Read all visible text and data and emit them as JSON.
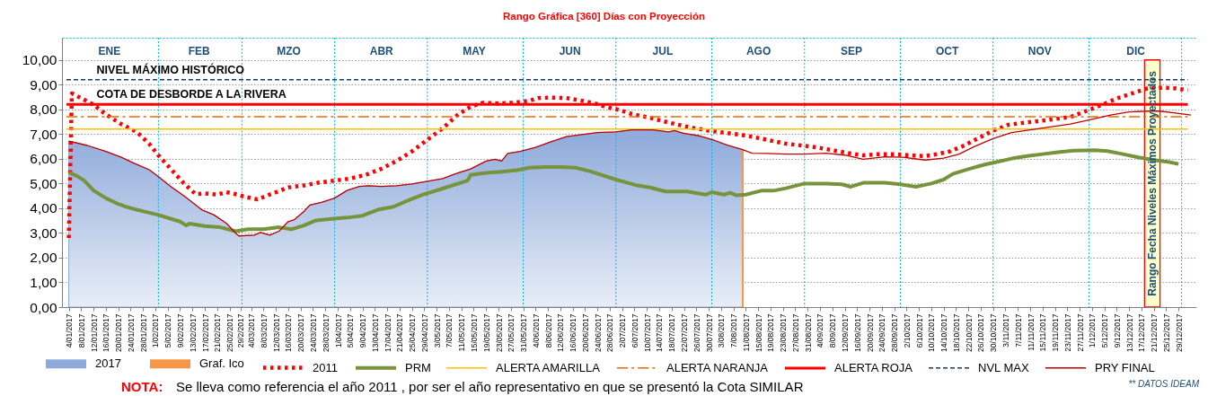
{
  "chart_data": {
    "type": "line",
    "title": "Rango Gráfica [360]  Días con Proyección",
    "xlim": [
      "2017-01-03T06:00",
      "2018-01-02T07:00"
    ],
    "xticks": [
      {
        "value": "2017-01-04",
        "label": "4/01/2017"
      },
      {
        "value": "2017-01-08",
        "label": "8/01/2017"
      },
      {
        "value": "2017-01-12",
        "label": "12/01/2017"
      },
      {
        "value": "2017-01-16",
        "label": "16/01/2017"
      },
      {
        "value": "2017-01-20",
        "label": "20/01/2017"
      },
      {
        "value": "2017-01-24",
        "label": "24/01/2017"
      },
      {
        "value": "2017-01-28",
        "label": "28/01/2017"
      },
      {
        "value": "2017-02-01",
        "label": "1/02/2017"
      },
      {
        "value": "2017-02-05",
        "label": "5/02/2017"
      },
      {
        "value": "2017-02-09",
        "label": "9/02/2017"
      },
      {
        "value": "2017-02-13",
        "label": "13/02/2017"
      },
      {
        "value": "2017-02-17",
        "label": "17/02/2017"
      },
      {
        "value": "2017-02-21",
        "label": "21/02/2017"
      },
      {
        "value": "2017-02-25",
        "label": "25/02/2017"
      },
      {
        "value": "2017-02-28T12:00",
        "label": "29/2/2017"
      },
      {
        "value": "2017-03-04",
        "label": "4/03/2017"
      },
      {
        "value": "2017-03-08",
        "label": "8/03/2017"
      },
      {
        "value": "2017-03-12",
        "label": "12/03/2017"
      },
      {
        "value": "2017-03-16",
        "label": "16/03/2017"
      },
      {
        "value": "2017-03-20",
        "label": "20/03/2017"
      },
      {
        "value": "2017-03-24",
        "label": "24/03/2017"
      },
      {
        "value": "2017-03-28",
        "label": "28/03/2017"
      },
      {
        "value": "2017-04-01",
        "label": "1/04/2017"
      },
      {
        "value": "2017-04-05",
        "label": "5/04/2017"
      },
      {
        "value": "2017-04-09",
        "label": "9/04/2017"
      },
      {
        "value": "2017-04-13",
        "label": "13/04/2017"
      },
      {
        "value": "2017-04-17",
        "label": "17/04/2017"
      },
      {
        "value": "2017-04-21",
        "label": "21/04/2017"
      },
      {
        "value": "2017-04-25",
        "label": "25/04/2017"
      },
      {
        "value": "2017-04-29",
        "label": "29/04/2017"
      },
      {
        "value": "2017-05-03",
        "label": "3/05/2017"
      },
      {
        "value": "2017-05-07",
        "label": "7/05/2017"
      },
      {
        "value": "2017-05-11",
        "label": "11/05/2017"
      },
      {
        "value": "2017-05-15",
        "label": "15/05/2017"
      },
      {
        "value": "2017-05-19",
        "label": "19/05/2017"
      },
      {
        "value": "2017-05-23",
        "label": "23/05/2017"
      },
      {
        "value": "2017-05-27",
        "label": "27/05/2017"
      },
      {
        "value": "2017-05-31",
        "label": "31/05/2017"
      },
      {
        "value": "2017-06-04",
        "label": "4/06/2017"
      },
      {
        "value": "2017-06-08",
        "label": "8/06/2017"
      },
      {
        "value": "2017-06-12",
        "label": "12/06/2017"
      },
      {
        "value": "2017-06-16",
        "label": "16/06/2017"
      },
      {
        "value": "2017-06-20",
        "label": "20/06/2017"
      },
      {
        "value": "2017-06-24",
        "label": "24/06/2017"
      },
      {
        "value": "2017-06-28",
        "label": "28/06/2017"
      },
      {
        "value": "2017-07-02",
        "label": "2/07/2017"
      },
      {
        "value": "2017-07-06",
        "label": "6/07/2017"
      },
      {
        "value": "2017-07-10",
        "label": "10/07/2017"
      },
      {
        "value": "2017-07-14",
        "label": "14/07/2017"
      },
      {
        "value": "2017-07-18",
        "label": "18/07/2017"
      },
      {
        "value": "2017-07-22",
        "label": "22/07/2017"
      },
      {
        "value": "2017-07-26",
        "label": "26/07/2017"
      },
      {
        "value": "2017-07-30",
        "label": "30/07/2017"
      },
      {
        "value": "2017-08-03",
        "label": "3/08/2017"
      },
      {
        "value": "2017-08-07",
        "label": "7/08/2017"
      },
      {
        "value": "2017-08-11",
        "label": "11/08/2017"
      },
      {
        "value": "2017-08-15",
        "label": "15/08/2017"
      },
      {
        "value": "2017-08-19",
        "label": "19/08/2017"
      },
      {
        "value": "2017-08-23",
        "label": "23/08/2017"
      },
      {
        "value": "2017-08-27",
        "label": "27/08/2017"
      },
      {
        "value": "2017-08-31",
        "label": "31/08/2017"
      },
      {
        "value": "2017-09-04",
        "label": "4/09/2017"
      },
      {
        "value": "2017-09-08",
        "label": "8/09/2017"
      },
      {
        "value": "2017-09-12",
        "label": "12/09/2017"
      },
      {
        "value": "2017-09-16",
        "label": "16/09/2017"
      },
      {
        "value": "2017-09-20",
        "label": "20/09/2017"
      },
      {
        "value": "2017-09-24",
        "label": "24/09/2017"
      },
      {
        "value": "2017-09-28",
        "label": "28/09/2017"
      },
      {
        "value": "2017-10-02",
        "label": "2/10/2017"
      },
      {
        "value": "2017-10-06",
        "label": "6/10/2017"
      },
      {
        "value": "2017-10-10",
        "label": "10/10/2017"
      },
      {
        "value": "2017-10-14",
        "label": "14/10/2017"
      },
      {
        "value": "2017-10-18",
        "label": "18/10/2017"
      },
      {
        "value": "2017-10-22",
        "label": "22/10/2017"
      },
      {
        "value": "2017-10-26",
        "label": "26/10/2017"
      },
      {
        "value": "2017-10-30",
        "label": "30/10/2017"
      },
      {
        "value": "2017-11-03",
        "label": "3/11/2017"
      },
      {
        "value": "2017-11-07",
        "label": "7/11/2017"
      },
      {
        "value": "2017-11-11",
        "label": "11/11/2017"
      },
      {
        "value": "2017-11-15",
        "label": "15/11/2017"
      },
      {
        "value": "2017-11-19",
        "label": "19/11/2017"
      },
      {
        "value": "2017-11-23",
        "label": "23/11/2017"
      },
      {
        "value": "2017-11-27",
        "label": "27/11/2017"
      },
      {
        "value": "2017-12-01",
        "label": "1/12/2017"
      },
      {
        "value": "2017-12-05",
        "label": "5/12/2017"
      },
      {
        "value": "2017-12-09",
        "label": "9/12/2017"
      },
      {
        "value": "2017-12-13",
        "label": "13/12/2017"
      },
      {
        "value": "2017-12-17",
        "label": "17/12/2017"
      },
      {
        "value": "2017-12-21",
        "label": "21/12/2017"
      },
      {
        "value": "2017-12-25",
        "label": "25/12/2017"
      },
      {
        "value": "2017-12-29",
        "label": "29/12/2017"
      }
    ],
    "x2lim": [
      "2017-01-03T06:00",
      "2018-01-02T07:00"
    ],
    "x2ticks": [
      {
        "value": "2017-01-17",
        "label": "ENE"
      },
      {
        "value": "2017-02-15",
        "label": "FEB"
      },
      {
        "value": "2017-03-16",
        "label": "MZO"
      },
      {
        "value": "2017-04-15",
        "label": "ABR"
      },
      {
        "value": "2017-05-15",
        "label": "MAY"
      },
      {
        "value": "2017-06-15",
        "label": "JUN"
      },
      {
        "value": "2017-07-15",
        "label": "JUL"
      },
      {
        "value": "2017-08-15",
        "label": "AGO"
      },
      {
        "value": "2017-09-14",
        "label": "SEP"
      },
      {
        "value": "2017-10-15",
        "label": "OCT"
      },
      {
        "value": "2017-11-14",
        "label": "NOV"
      },
      {
        "value": "2017-12-15",
        "label": "DIC"
      }
    ],
    "ylim": [
      0,
      10.9
    ],
    "yticks": [
      {
        "value": 0,
        "label": "0,00"
      },
      {
        "value": 1,
        "label": "1,00"
      },
      {
        "value": 2,
        "label": "2,00"
      },
      {
        "value": 3,
        "label": "3,00"
      },
      {
        "value": 4,
        "label": "4,00"
      },
      {
        "value": 5,
        "label": "5,00"
      },
      {
        "value": 6,
        "label": "6,00"
      },
      {
        "value": 7,
        "label": "7,00"
      },
      {
        "value": 8,
        "label": "8,00"
      },
      {
        "value": 9,
        "label": "9,00"
      },
      {
        "value": 10,
        "label": "10,00"
      }
    ],
    "grid": "y",
    "legend": "bottom",
    "series": [
      {
        "name": "2017",
        "type": "area",
        "color": "#8eaadb",
        "x": [
          "2017-01-04",
          "2017-01-10",
          "2017-01-16",
          "2017-01-21",
          "2017-01-25",
          "2017-01-30",
          "2017-02-02",
          "2017-02-06",
          "2017-02-10",
          "2017-02-12",
          "2017-02-16",
          "2017-02-20",
          "2017-02-24",
          "2017-02-27",
          "2017-02-28",
          "2017-03-05",
          "2017-03-07",
          "2017-03-10",
          "2017-03-13",
          "2017-03-16",
          "2017-03-18",
          "2017-03-21",
          "2017-03-23",
          "2017-03-27",
          "2017-03-31",
          "2017-04-04",
          "2017-04-08",
          "2017-04-11",
          "2017-04-15",
          "2017-04-20",
          "2017-04-25",
          "2017-04-30",
          "2017-05-05",
          "2017-05-09",
          "2017-05-14",
          "2017-05-19",
          "2017-05-22",
          "2017-05-24",
          "2017-05-26",
          "2017-05-30",
          "2017-06-04",
          "2017-06-09",
          "2017-06-14",
          "2017-06-19",
          "2017-06-24",
          "2017-06-30",
          "2017-07-05",
          "2017-07-12",
          "2017-07-17",
          "2017-07-19",
          "2017-07-22",
          "2017-07-27",
          "2017-08-01",
          "2017-08-05",
          "2017-08-10"
        ],
        "values": [
          6.72,
          6.54,
          6.3,
          6.06,
          5.83,
          5.56,
          5.28,
          4.88,
          4.52,
          4.33,
          3.94,
          3.73,
          3.39,
          2.99,
          2.88,
          2.91,
          3.02,
          2.91,
          3.07,
          3.46,
          3.54,
          3.86,
          4.13,
          4.25,
          4.41,
          4.72,
          4.88,
          4.91,
          4.88,
          4.91,
          4.98,
          5.09,
          5.2,
          5.39,
          5.59,
          5.91,
          5.98,
          5.91,
          6.22,
          6.3,
          6.46,
          6.69,
          6.9,
          6.98,
          7.06,
          7.09,
          7.17,
          7.17,
          7.09,
          7.14,
          7.03,
          6.93,
          6.74,
          6.55,
          6.37
        ]
      },
      {
        "name": "Graf. Ico",
        "type": "bar",
        "color": "#f79646",
        "x": [
          "2017-08-10"
        ],
        "values": [
          6.37
        ]
      },
      {
        "name": "2011",
        "line_style": "dotted",
        "color": "#ff0000",
        "x": [
          "2017-01-04",
          "2017-01-05",
          "2017-01-12",
          "2017-01-16",
          "2017-01-21",
          "2017-01-26",
          "2017-01-30",
          "2017-02-02",
          "2017-02-06",
          "2017-02-10",
          "2017-02-14",
          "2017-02-17",
          "2017-02-21",
          "2017-02-24",
          "2017-02-27",
          "2017-03-02",
          "2017-03-06",
          "2017-03-11",
          "2017-03-16",
          "2017-03-21",
          "2017-03-26",
          "2017-03-31",
          "2017-04-05",
          "2017-04-10",
          "2017-04-15",
          "2017-04-20",
          "2017-04-25",
          "2017-04-30",
          "2017-05-05",
          "2017-05-10",
          "2017-05-14",
          "2017-05-18",
          "2017-05-23",
          "2017-05-28",
          "2017-06-02",
          "2017-06-05",
          "2017-06-09",
          "2017-06-14",
          "2017-06-19",
          "2017-06-23",
          "2017-06-27",
          "2017-07-01",
          "2017-07-05",
          "2017-07-10",
          "2017-07-15",
          "2017-07-20",
          "2017-07-25",
          "2017-07-30",
          "2017-08-04",
          "2017-08-09",
          "2017-08-14",
          "2017-08-19",
          "2017-08-24",
          "2017-08-29",
          "2017-09-03",
          "2017-09-08",
          "2017-09-13",
          "2017-09-18",
          "2017-09-23",
          "2017-09-28",
          "2017-10-03",
          "2017-10-08",
          "2017-10-12",
          "2017-10-16",
          "2017-10-20",
          "2017-10-25",
          "2017-10-30",
          "2017-11-04",
          "2017-11-09",
          "2017-11-14",
          "2017-11-19",
          "2017-11-24",
          "2017-11-29",
          "2017-12-04",
          "2017-12-09",
          "2017-12-14",
          "2017-12-19",
          "2017-12-24",
          "2017-12-28",
          "2018-01-01"
        ],
        "values": [
          2.8,
          8.65,
          8.19,
          7.8,
          7.4,
          7.09,
          6.61,
          6.14,
          5.59,
          5.04,
          4.57,
          4.6,
          4.55,
          4.65,
          4.57,
          4.46,
          4.36,
          4.6,
          4.84,
          4.92,
          5.04,
          5.12,
          5.2,
          5.35,
          5.59,
          5.91,
          6.3,
          6.77,
          7.24,
          7.8,
          8.11,
          8.27,
          8.24,
          8.27,
          8.35,
          8.46,
          8.48,
          8.46,
          8.35,
          8.25,
          8.09,
          7.98,
          7.82,
          7.69,
          7.53,
          7.38,
          7.25,
          7.14,
          7.06,
          6.98,
          6.87,
          6.74,
          6.61,
          6.54,
          6.46,
          6.35,
          6.23,
          6.14,
          6.19,
          6.19,
          6.14,
          6.11,
          6.19,
          6.3,
          6.5,
          6.82,
          7.14,
          7.38,
          7.46,
          7.53,
          7.61,
          7.69,
          7.93,
          8.17,
          8.44,
          8.65,
          8.85,
          8.88,
          8.85,
          8.77
        ]
      },
      {
        "name": "PRM",
        "color": "#77933c",
        "x": [
          "2017-01-04",
          "2017-01-07",
          "2017-01-09",
          "2017-01-12",
          "2017-01-16",
          "2017-01-20",
          "2017-01-22",
          "2017-01-26",
          "2017-02-02",
          "2017-02-09",
          "2017-02-11",
          "2017-02-12",
          "2017-02-17",
          "2017-02-22",
          "2017-02-27",
          "2017-03-03",
          "2017-03-08",
          "2017-03-13",
          "2017-03-17",
          "2017-03-21",
          "2017-03-25",
          "2017-03-30",
          "2017-04-04",
          "2017-04-09",
          "2017-04-14",
          "2017-04-19",
          "2017-04-24",
          "2017-04-29",
          "2017-05-04",
          "2017-05-09",
          "2017-05-13",
          "2017-05-14",
          "2017-05-19",
          "2017-05-24",
          "2017-05-29",
          "2017-06-02",
          "2017-06-07",
          "2017-06-12",
          "2017-06-17",
          "2017-06-22",
          "2017-06-30",
          "2017-07-07",
          "2017-07-11",
          "2017-07-16",
          "2017-07-23",
          "2017-07-29",
          "2017-07-31",
          "2017-08-04",
          "2017-08-06",
          "2017-08-08",
          "2017-08-11",
          "2017-08-16",
          "2017-08-20",
          "2017-08-24",
          "2017-08-30",
          "2017-09-06",
          "2017-09-11",
          "2017-09-14",
          "2017-09-18",
          "2017-09-25",
          "2017-09-30",
          "2017-10-05",
          "2017-10-10",
          "2017-10-14",
          "2017-10-17",
          "2017-10-22",
          "2017-10-27",
          "2017-10-31",
          "2017-11-05",
          "2017-11-10",
          "2017-11-15",
          "2017-11-20",
          "2017-11-25",
          "2017-12-02",
          "2017-12-06",
          "2017-12-11",
          "2017-12-16",
          "2017-12-21",
          "2017-12-26",
          "2017-12-29"
        ],
        "values": [
          5.45,
          5.28,
          5.12,
          4.72,
          4.41,
          4.17,
          4.08,
          3.94,
          3.73,
          3.46,
          3.3,
          3.38,
          3.28,
          3.23,
          3.07,
          3.15,
          3.15,
          3.23,
          3.15,
          3.3,
          3.51,
          3.57,
          3.62,
          3.7,
          3.94,
          4.06,
          4.33,
          4.57,
          4.76,
          4.96,
          5.12,
          5.35,
          5.43,
          5.48,
          5.54,
          5.64,
          5.67,
          5.67,
          5.64,
          5.48,
          5.16,
          4.92,
          4.84,
          4.68,
          4.68,
          4.55,
          4.65,
          4.55,
          4.63,
          4.52,
          4.55,
          4.71,
          4.71,
          4.81,
          5.0,
          5.0,
          4.97,
          4.87,
          5.03,
          5.03,
          4.97,
          4.87,
          5.0,
          5.16,
          5.39,
          5.58,
          5.76,
          5.87,
          6.01,
          6.11,
          6.19,
          6.27,
          6.33,
          6.35,
          6.31,
          6.19,
          6.06,
          5.95,
          5.87,
          5.79
        ]
      },
      {
        "name": "ALERTA AMARILLA",
        "color": "#ffc000",
        "x": [
          "2017-01-03T06:00",
          "2018-01-01"
        ],
        "values": [
          7.2,
          7.2
        ]
      },
      {
        "name": "ALERTA NARANJA",
        "line_style": "dashdot",
        "color": "#e46c0a",
        "x": [
          "2017-01-03T06:00",
          "2018-01-01"
        ],
        "values": [
          7.7,
          7.7
        ]
      },
      {
        "name": "ALERTA ROJA",
        "color": "#ff0000",
        "x": [
          "2017-01-03T06:00",
          "2018-01-01"
        ],
        "values": [
          8.2,
          8.2
        ]
      },
      {
        "name": "NVL MAX",
        "line_style": "dashed",
        "color": "#1f3864",
        "x": [
          "2017-01-03T06:00",
          "2018-01-01"
        ],
        "values": [
          9.2,
          9.2
        ]
      },
      {
        "name": "PRY FINAL",
        "color": "#c00000",
        "x": [
          "2017-01-04",
          "2017-01-10",
          "2017-01-16",
          "2017-01-21",
          "2017-01-25",
          "2017-01-30",
          "2017-02-02",
          "2017-02-06",
          "2017-02-10",
          "2017-02-12",
          "2017-02-16",
          "2017-02-20",
          "2017-02-24",
          "2017-02-27",
          "2017-02-28",
          "2017-03-05",
          "2017-03-07",
          "2017-03-10",
          "2017-03-13",
          "2017-03-16",
          "2017-03-18",
          "2017-03-21",
          "2017-03-23",
          "2017-03-27",
          "2017-03-31",
          "2017-04-04",
          "2017-04-08",
          "2017-04-11",
          "2017-04-15",
          "2017-04-20",
          "2017-04-25",
          "2017-04-30",
          "2017-05-05",
          "2017-05-09",
          "2017-05-14",
          "2017-05-19",
          "2017-05-22",
          "2017-05-24",
          "2017-05-26",
          "2017-05-30",
          "2017-06-04",
          "2017-06-09",
          "2017-06-14",
          "2017-06-19",
          "2017-06-24",
          "2017-06-30",
          "2017-07-05",
          "2017-07-12",
          "2017-07-17",
          "2017-07-19",
          "2017-07-22",
          "2017-07-27",
          "2017-08-01",
          "2017-08-05",
          "2017-08-10",
          "2017-08-13",
          "2017-08-18",
          "2017-08-24",
          "2017-08-30",
          "2017-09-06",
          "2017-09-12",
          "2017-09-18",
          "2017-09-25",
          "2017-10-01",
          "2017-10-08",
          "2017-10-14",
          "2017-10-19",
          "2017-10-24",
          "2017-10-30",
          "2017-11-05",
          "2017-11-12",
          "2017-11-18",
          "2017-11-24",
          "2017-11-30",
          "2017-12-07",
          "2017-12-13",
          "2017-12-19",
          "2017-12-23",
          "2017-12-28",
          "2018-01-02"
        ],
        "values": [
          6.72,
          6.54,
          6.3,
          6.06,
          5.83,
          5.56,
          5.28,
          4.88,
          4.52,
          4.33,
          3.94,
          3.73,
          3.39,
          2.99,
          2.88,
          2.91,
          3.02,
          2.91,
          3.07,
          3.46,
          3.54,
          3.86,
          4.13,
          4.25,
          4.41,
          4.72,
          4.88,
          4.91,
          4.88,
          4.91,
          4.98,
          5.09,
          5.2,
          5.39,
          5.59,
          5.91,
          5.98,
          5.91,
          6.22,
          6.3,
          6.46,
          6.69,
          6.9,
          6.98,
          7.06,
          7.09,
          7.17,
          7.17,
          7.09,
          7.14,
          7.03,
          6.93,
          6.74,
          6.55,
          6.37,
          6.23,
          6.22,
          6.19,
          6.19,
          6.23,
          6.15,
          5.98,
          6.08,
          6.06,
          5.95,
          6.03,
          6.19,
          6.5,
          6.82,
          7.06,
          7.19,
          7.3,
          7.41,
          7.57,
          7.77,
          7.9,
          7.93,
          7.93,
          7.85,
          7.77
        ]
      }
    ],
    "ref_lines": [
      {
        "axis": "x",
        "value": "2017-02-02",
        "color": "#00b0f0",
        "line_style": "dotted"
      },
      {
        "axis": "x",
        "value": "2017-03-01",
        "color": "#00b0f0",
        "line_style": "dotted"
      },
      {
        "axis": "x",
        "value": "2017-03-31",
        "color": "#00b0f0",
        "line_style": "dotted"
      },
      {
        "axis": "x",
        "value": "2017-04-30",
        "color": "#00b0f0",
        "line_style": "dotted"
      },
      {
        "axis": "x",
        "value": "2017-05-31",
        "color": "#00b0f0",
        "line_style": "dotted"
      },
      {
        "axis": "x",
        "value": "2017-06-30",
        "color": "#00b0f0",
        "line_style": "dotted"
      },
      {
        "axis": "x",
        "value": "2017-07-31",
        "color": "#00b0f0",
        "line_style": "dotted"
      },
      {
        "axis": "x",
        "value": "2017-08-30",
        "color": "#00b0f0",
        "line_style": "dotted"
      },
      {
        "axis": "x",
        "value": "2017-09-30",
        "color": "#00b0f0",
        "line_style": "dotted"
      },
      {
        "axis": "x",
        "value": "2017-10-30",
        "color": "#00b0f0",
        "line_style": "dotted"
      },
      {
        "axis": "x",
        "value": "2017-11-30",
        "color": "#00b0f0",
        "line_style": "dotted"
      },
      {
        "axis": "x",
        "value": "2017-12-30",
        "color": "#00b0f0",
        "line_style": "dotted"
      }
    ],
    "bands": [
      {
        "axis": "x",
        "from": "2017-12-18",
        "to": "2017-12-23",
        "label": "Rango Fecha Niveles Máximos Proyectados",
        "color": "#ffffcc"
      }
    ],
    "annotations": [
      {
        "text": "NIVEL MÁXIMO HISTÓRICO",
        "x": "2017-01-13",
        "y": 9.2
      },
      {
        "text": "COTA DE DESBORDE A LA RIVERA",
        "x": "2017-01-13",
        "y": 8.2
      },
      "NOTA:",
      "Se lleva como referencia el año  2011 , por ser el año representativo en que se presentó la Cota SIMILAR",
      "** DATOS IDEAM"
    ]
  }
}
